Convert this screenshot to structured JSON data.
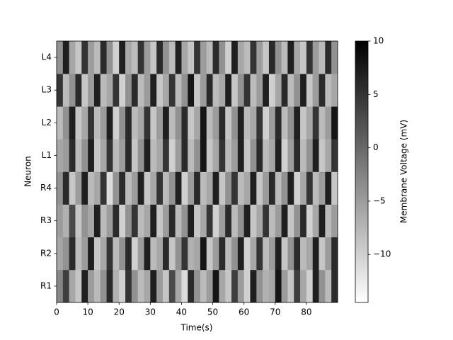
{
  "chart_data": {
    "type": "heatmap",
    "xlabel": "Time(s)",
    "ylabel": "Neuron",
    "colorbar_label": "Membrane Voltage (mV)",
    "colormap": "gray_r",
    "categories": [
      "R1",
      "R2",
      "R3",
      "R4",
      "L1",
      "L2",
      "L3",
      "L4"
    ],
    "x_edges": [
      0,
      2,
      4,
      6,
      8,
      10,
      12,
      14,
      16,
      18,
      20,
      22,
      24,
      26,
      28,
      30,
      32,
      34,
      36,
      38,
      40,
      42,
      44,
      46,
      48,
      50,
      52,
      54,
      56,
      58,
      60,
      62,
      64,
      66,
      68,
      70,
      72,
      74,
      76,
      78,
      80,
      82,
      84,
      86,
      88,
      90
    ],
    "values": [
      [
        -3,
        4,
        -6,
        -9,
        7,
        -5,
        -8,
        -4,
        6,
        -7,
        -10,
        5,
        -4,
        -8,
        -6,
        7,
        -5,
        -9,
        3,
        -6,
        -11,
        6,
        -4,
        -8,
        -5,
        8,
        -6,
        -9,
        4,
        -5,
        -10,
        7,
        -4,
        -7,
        -6,
        8,
        -5,
        -9,
        4,
        -6,
        -10,
        7,
        -4,
        -8,
        6
      ],
      [
        -6,
        -4,
        6,
        -8,
        -5,
        7,
        -9,
        -6,
        5,
        -8,
        -4,
        6,
        -10,
        -5,
        7,
        -8,
        -6,
        6,
        -9,
        -4,
        5,
        -7,
        -6,
        8,
        -9,
        -5,
        6,
        -8,
        -4,
        7,
        -10,
        -6,
        5,
        -8,
        -5,
        7,
        -9,
        -4,
        6,
        -8,
        -6,
        7,
        -9,
        -5,
        6
      ],
      [
        -5,
        -7,
        3,
        -9,
        -4,
        -6,
        7,
        -8,
        -5,
        6,
        -10,
        -4,
        5,
        -8,
        -6,
        7,
        -9,
        -5,
        6,
        -8,
        -4,
        7,
        -9,
        -6,
        5,
        -10,
        -5,
        6,
        -8,
        -4,
        7,
        -9,
        -6,
        5,
        -8,
        -5,
        7,
        -9,
        -4,
        6,
        -10,
        -6,
        7,
        -8,
        -5
      ],
      [
        -4,
        6,
        -9,
        -5,
        7,
        -8,
        -6,
        5,
        -11,
        -4,
        6,
        -8,
        -5,
        7,
        -9,
        -6,
        5,
        -8,
        -4,
        7,
        -10,
        -5,
        6,
        -8,
        -6,
        7,
        -9,
        -4,
        5,
        -8,
        -6,
        7,
        -9,
        -5,
        6,
        -8,
        -4,
        7,
        -10,
        -6,
        5,
        -8,
        -5,
        7,
        -9
      ],
      [
        -6,
        -5,
        6,
        -8,
        -4,
        7,
        -9,
        -6,
        5,
        -8,
        -5,
        6,
        -9,
        -4,
        7,
        -8,
        -6,
        5,
        -10,
        -5,
        6,
        -8,
        -4,
        8,
        -9,
        -6,
        5,
        -8,
        -5,
        7,
        -9,
        -4,
        6,
        -8,
        -6,
        7,
        -10,
        -5,
        6,
        -8,
        -4,
        7,
        -9,
        -6,
        5
      ],
      [
        -8,
        -4,
        7,
        -9,
        -6,
        5,
        -8,
        -5,
        7,
        -10,
        -4,
        6,
        -8,
        -6,
        5,
        -9,
        -5,
        7,
        -8,
        -4,
        6,
        -9,
        -6,
        8,
        -8,
        -5,
        6,
        -9,
        -4,
        7,
        -8,
        -6,
        5,
        -10,
        -5,
        6,
        -8,
        -4,
        7,
        -9,
        -6,
        5,
        -8,
        -5,
        8
      ],
      [
        5,
        -8,
        -4,
        6,
        -9,
        -5,
        7,
        -8,
        -6,
        5,
        -10,
        -4,
        6,
        -8,
        -5,
        7,
        -9,
        -6,
        5,
        -8,
        -4,
        8,
        -9,
        -5,
        6,
        -8,
        -6,
        7,
        -9,
        -4,
        5,
        -8,
        -5,
        7,
        -10,
        -6,
        6,
        -8,
        -4,
        7,
        -9,
        -5,
        6,
        -8,
        -6
      ],
      [
        -4,
        7,
        -6,
        -9,
        5,
        -5,
        -8,
        6,
        -4,
        -10,
        7,
        -6,
        -8,
        5,
        -5,
        -9,
        6,
        -4,
        -8,
        7,
        -6,
        -9,
        5,
        -5,
        -8,
        6,
        -4,
        -10,
        7,
        -6,
        -8,
        5,
        -5,
        -9,
        6,
        -4,
        -8,
        7,
        -6,
        -9,
        5,
        -5,
        -8,
        6,
        -4
      ]
    ],
    "xlim": [
      0,
      90
    ],
    "xticks": [
      0,
      10,
      20,
      30,
      40,
      50,
      60,
      70,
      80
    ],
    "clim": [
      -14.5,
      10
    ],
    "cticks": [
      {
        "value": -10,
        "label": "−10"
      },
      {
        "value": -5,
        "label": "−5"
      },
      0,
      5,
      10
    ]
  }
}
